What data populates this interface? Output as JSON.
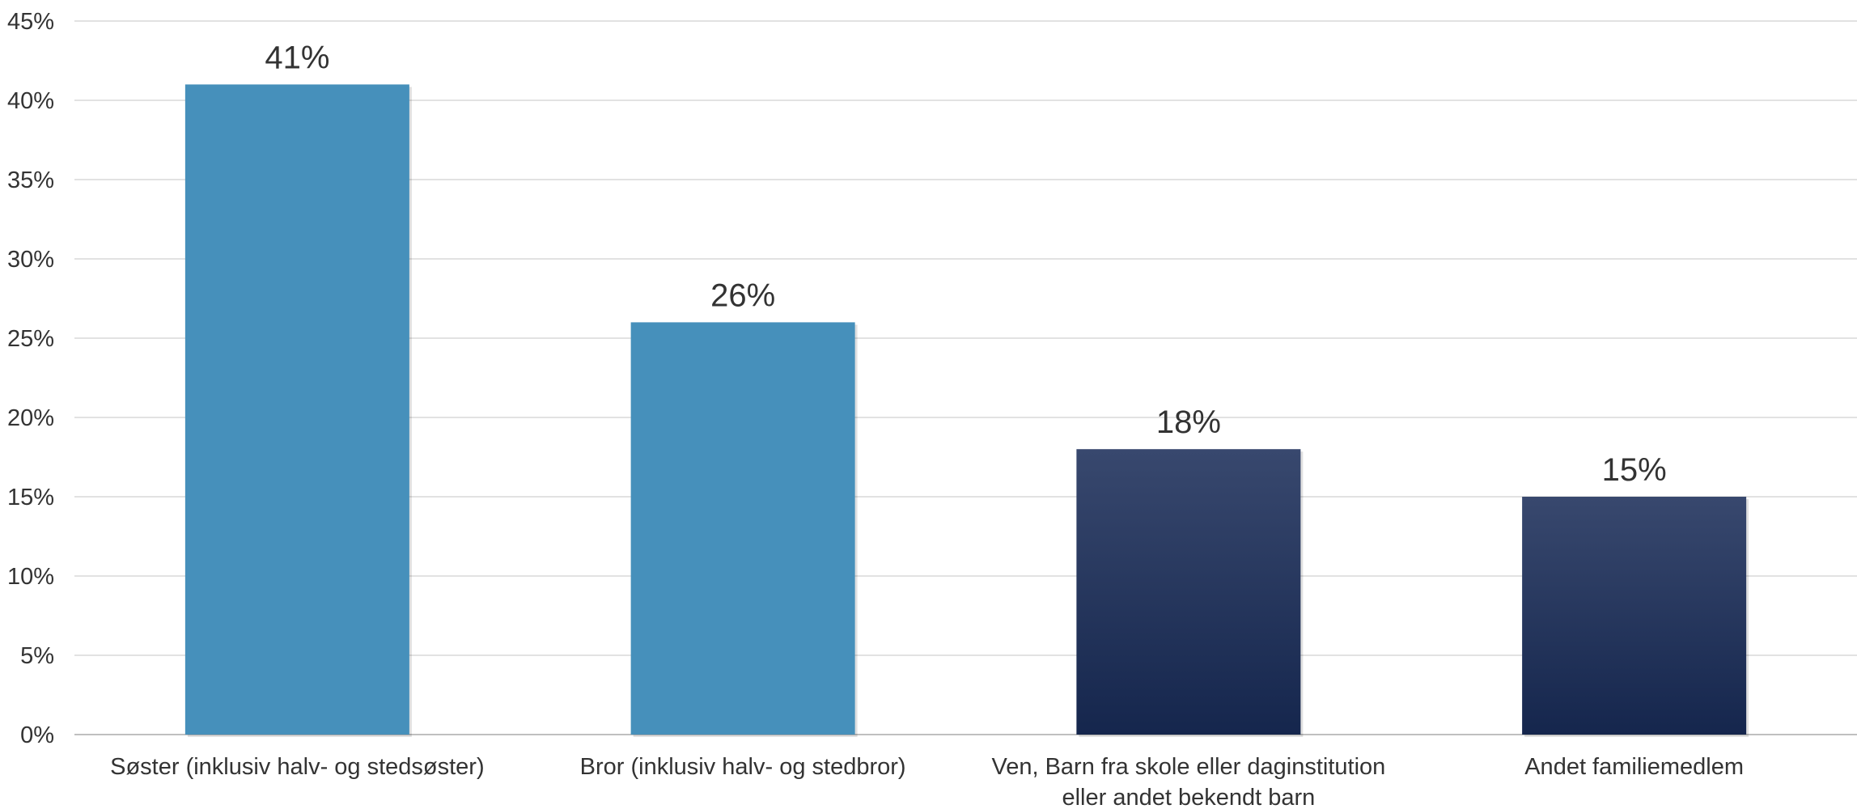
{
  "chart_data": {
    "type": "bar",
    "categories": [
      [
        "Søster (inklusiv halv- og stedsøster)"
      ],
      [
        "Bror (inklusiv halv- og stedbror)"
      ],
      [
        "Ven, Barn fra skole eller daginstitution",
        "eller andet bekendt barn"
      ],
      [
        "Andet familiemedlem"
      ]
    ],
    "values": [
      41,
      26,
      18,
      15
    ],
    "data_labels": [
      "41%",
      "26%",
      "18%",
      "15%"
    ],
    "ylim": [
      0,
      45
    ],
    "y_ticks": [
      0,
      5,
      10,
      15,
      20,
      25,
      30,
      35,
      40,
      45
    ],
    "y_tick_labels": [
      "0%",
      "5%",
      "10%",
      "15%",
      "20%",
      "25%",
      "30%",
      "35%",
      "40%",
      "45%"
    ],
    "grid": true,
    "bar_styles": [
      "light",
      "light",
      "dark",
      "dark"
    ],
    "colors": {
      "light_bar": "#4690BB",
      "dark_bar_top": "#38486E",
      "dark_bar_bottom": "#15264D",
      "grid": "#D9D9D9",
      "axis": "#BFBFBF",
      "text": "#333333"
    }
  }
}
